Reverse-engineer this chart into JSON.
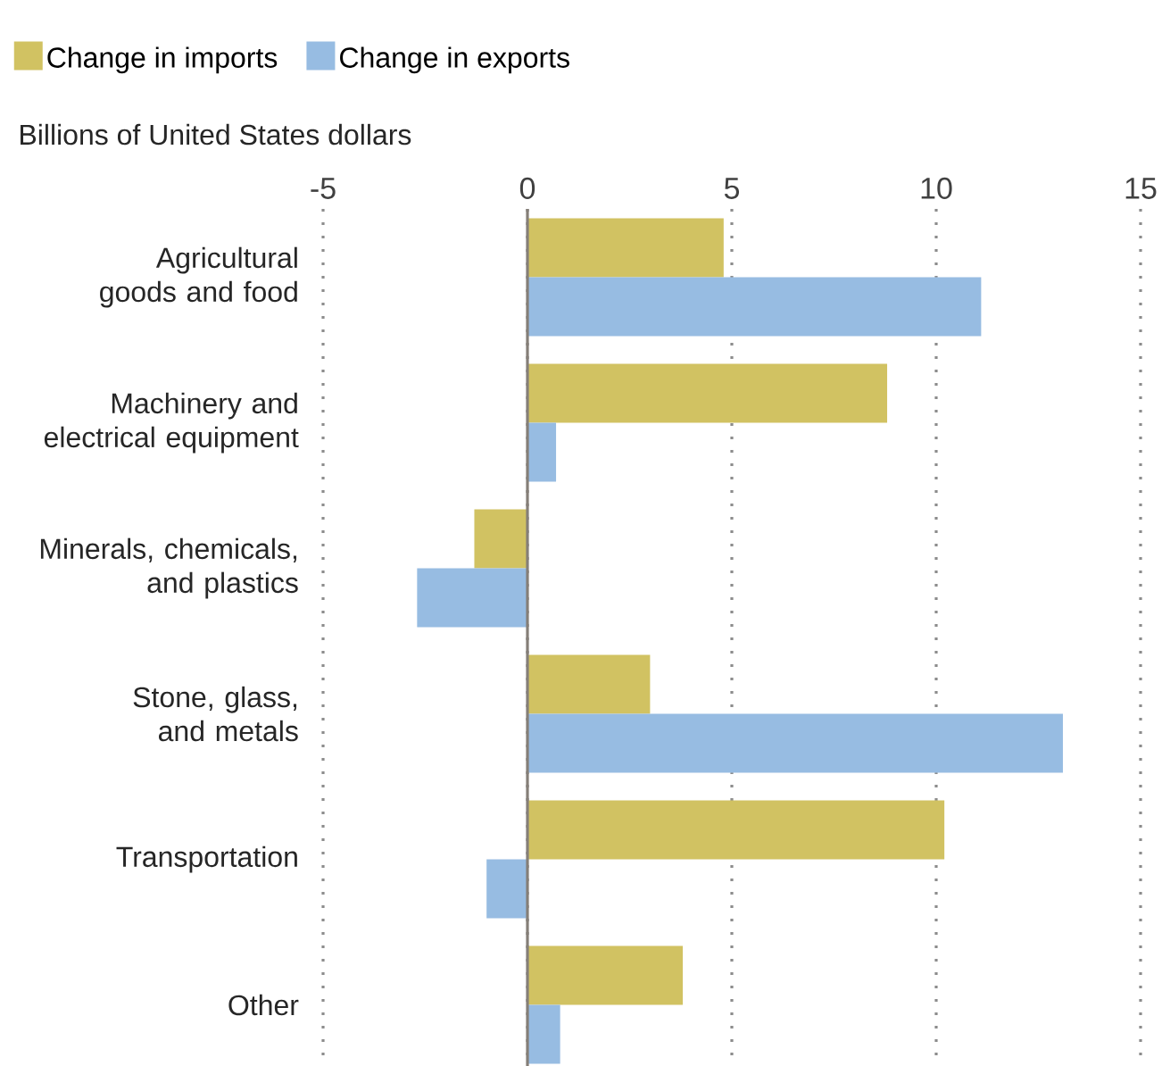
{
  "chart_data": {
    "type": "bar",
    "orientation": "horizontal",
    "xlabel": "Billions of United States dollars",
    "categories": [
      "Agricultural goods and food",
      "Machinery and electrical equipment",
      "Minerals, chemicals, and plastics",
      "Stone, glass, and metals",
      "Transportation",
      "Other"
    ],
    "series": [
      {
        "name": "Change in imports",
        "color": "#d1c262",
        "values": [
          4.8,
          8.8,
          -1.3,
          3.0,
          10.2,
          3.8
        ]
      },
      {
        "name": "Change in exports",
        "color": "#97bce2",
        "values": [
          11.1,
          0.7,
          -2.7,
          13.1,
          -1.0,
          0.8
        ]
      }
    ],
    "ref_lines": [
      {
        "axis": "x",
        "value": 0,
        "color": "#857f78"
      }
    ],
    "xlim": [
      -5,
      15
    ],
    "xticks": [
      -5,
      0,
      5,
      10,
      15
    ],
    "grid": "x",
    "legend": "top left"
  }
}
